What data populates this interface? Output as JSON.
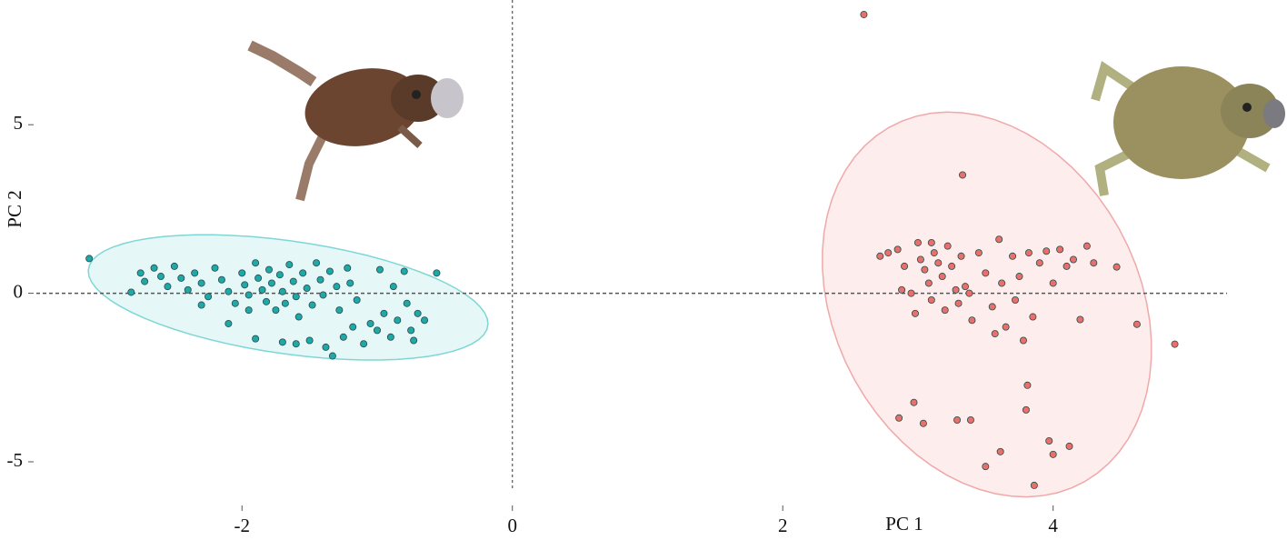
{
  "chart_data": {
    "type": "scatter",
    "xlabel": "PC 1",
    "ylabel": "PC 2",
    "xlim": [
      -3.79,
      5.73
    ],
    "ylim": [
      -7.32,
      8.7
    ],
    "xticks": [
      -2,
      0,
      2,
      4
    ],
    "yticks": [
      -5,
      0,
      5
    ],
    "series": [
      {
        "color": "#1fa8a8",
        "ellipse_fill": "#dff5f5",
        "ellipse_stroke": "#7fd6d6",
        "x": [
          -3.13,
          -2.82,
          -2.75,
          -2.72,
          -2.65,
          -2.6,
          -2.55,
          -2.5,
          -2.45,
          -2.4,
          -2.35,
          -2.3,
          -2.25,
          -2.2,
          -2.15,
          -2.1,
          -2.05,
          -2.0,
          -1.98,
          -1.95,
          -1.9,
          -1.88,
          -1.85,
          -1.82,
          -1.8,
          -1.78,
          -1.75,
          -1.72,
          -1.7,
          -1.68,
          -1.65,
          -1.62,
          -1.6,
          -1.58,
          -1.55,
          -1.52,
          -1.5,
          -1.48,
          -1.45,
          -1.42,
          -1.4,
          -1.38,
          -1.35,
          -1.33,
          -1.3,
          -1.28,
          -1.25,
          -1.22,
          -1.2,
          -1.18,
          -1.15,
          -1.1,
          -1.05,
          -1.0,
          -0.98,
          -0.95,
          -0.9,
          -0.88,
          -0.85,
          -0.8,
          -0.78,
          -0.75,
          -0.73,
          -0.7,
          -0.65,
          -0.56,
          -1.6,
          -1.7,
          -1.9,
          -1.95,
          -2.3,
          -2.1
        ],
        "values": [
          1.03,
          0.03,
          0.6,
          0.35,
          0.75,
          0.5,
          0.2,
          0.8,
          0.45,
          0.1,
          0.6,
          0.3,
          -0.1,
          0.75,
          0.4,
          0.05,
          -0.3,
          0.6,
          0.25,
          -0.05,
          0.9,
          0.45,
          0.1,
          -0.25,
          0.7,
          0.3,
          -0.5,
          0.55,
          0.05,
          -0.3,
          0.85,
          0.35,
          -0.1,
          -0.7,
          0.6,
          0.15,
          -1.4,
          -0.35,
          0.9,
          0.4,
          -0.05,
          -1.6,
          0.65,
          -1.86,
          0.2,
          -0.5,
          -1.3,
          0.75,
          0.3,
          -1.0,
          -0.2,
          -1.5,
          -0.9,
          -1.1,
          0.7,
          -0.6,
          -1.3,
          0.2,
          -0.8,
          0.65,
          -0.3,
          -1.1,
          -1.4,
          -0.6,
          -0.8,
          0.6,
          -1.5,
          -1.45,
          -1.35,
          -0.5,
          -0.35,
          -0.9
        ]
      },
      {
        "color": "#e8706c",
        "ellipse_fill": "#fde8e8",
        "ellipse_stroke": "#f0a8a8",
        "x": [
          2.6,
          3.33,
          4.9,
          4.62,
          3.86,
          3.5,
          3.61,
          3.97,
          4.0,
          4.12,
          3.8,
          3.81,
          2.86,
          2.97,
          3.04,
          3.29,
          3.39,
          4.47,
          4.2,
          2.72,
          2.78,
          2.85,
          2.9,
          2.95,
          2.98,
          3.0,
          3.02,
          3.05,
          3.08,
          3.1,
          3.12,
          3.15,
          3.18,
          3.2,
          3.22,
          3.25,
          3.28,
          3.3,
          3.32,
          3.35,
          3.38,
          3.4,
          3.45,
          3.5,
          3.55,
          3.6,
          3.62,
          3.65,
          3.7,
          3.72,
          3.75,
          3.78,
          3.82,
          3.85,
          3.9,
          3.95,
          4.0,
          4.05,
          4.1,
          4.15,
          4.25,
          4.3,
          3.57,
          3.1,
          2.88
        ],
        "values": [
          8.27,
          3.51,
          -1.51,
          -0.92,
          -5.7,
          -5.14,
          -4.7,
          -4.38,
          -4.78,
          -4.54,
          -3.46,
          -2.73,
          -3.7,
          -3.24,
          -3.86,
          -3.76,
          -3.76,
          0.78,
          -0.78,
          1.1,
          1.2,
          1.3,
          0.8,
          0.0,
          -0.6,
          1.5,
          1.0,
          0.7,
          0.3,
          -0.2,
          1.2,
          0.9,
          0.5,
          -0.5,
          1.4,
          0.8,
          0.1,
          -0.3,
          1.1,
          0.2,
          0.0,
          -0.8,
          1.2,
          0.6,
          -0.4,
          1.6,
          0.3,
          -1.0,
          1.1,
          -0.2,
          0.5,
          -1.4,
          1.2,
          -0.7,
          0.9,
          1.25,
          0.3,
          1.3,
          0.8,
          1.0,
          1.4,
          0.9,
          -1.2,
          1.5,
          0.1
        ]
      }
    ]
  }
}
